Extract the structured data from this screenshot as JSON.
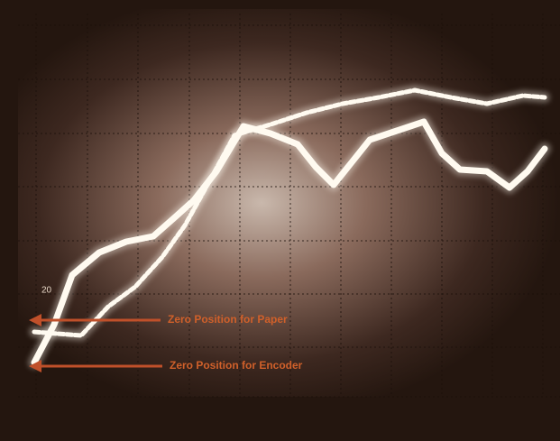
{
  "scale_label": "20",
  "annotations": [
    {
      "label": "Zero Position for Paper"
    },
    {
      "label": "Zero Position for Encoder"
    }
  ]
}
